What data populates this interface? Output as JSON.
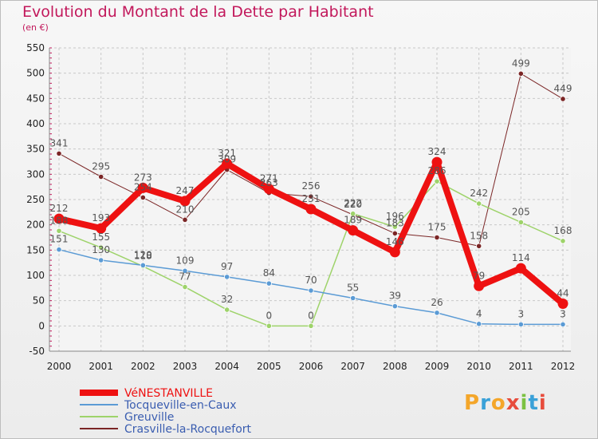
{
  "title": "Evolution du Montant de la Dette par Habitant",
  "subtitle": "(en €)",
  "logo": {
    "text": "Proxiti",
    "colors": [
      "#f4a62a",
      "#3aa1d8",
      "#f4a62a",
      "#e74c3c",
      "#7cc242",
      "#3aa1d8",
      "#e74c3c"
    ]
  },
  "chart_data": {
    "type": "line",
    "title": "Evolution du Montant de la Dette par Habitant",
    "subtitle": "(en €)",
    "xlabel": "",
    "ylabel": "",
    "x": [
      "2000",
      "2001",
      "2002",
      "2003",
      "2004",
      "2005",
      "2006",
      "2007",
      "2008",
      "2009",
      "2010",
      "2011",
      "2012"
    ],
    "ylim": [
      -50,
      550
    ],
    "yticks": [
      -50,
      0,
      50,
      100,
      150,
      200,
      250,
      300,
      350,
      400,
      450,
      500,
      550
    ],
    "grid": true,
    "legend_position": "bottom-left",
    "series": [
      {
        "name": "VéNESTANVILLE",
        "color": "#ee1111",
        "width": 8,
        "values": [
          212,
          193,
          273,
          247,
          321,
          271,
          231,
          189,
          146,
          324,
          79,
          114,
          44
        ],
        "labels": [
          "212",
          "193",
          "273",
          "247",
          "321",
          "271",
          "231",
          "189",
          "146",
          "324",
          "79",
          "114",
          "44"
        ]
      },
      {
        "name": "Tocqueville-en-Caux",
        "color": "#5b9bd5",
        "width": 1.5,
        "values": [
          151,
          130,
          120,
          109,
          97,
          84,
          70,
          55,
          39,
          26,
          4,
          3,
          3
        ],
        "labels": [
          "151",
          "130",
          "120",
          "109",
          "97",
          "84",
          "70",
          "55",
          "39",
          "26",
          "4",
          "3",
          "3"
        ]
      },
      {
        "name": "Greuville",
        "color": "#9ed36a",
        "width": 1.5,
        "values": [
          188,
          155,
          118,
          77,
          32,
          0,
          0,
          222,
          196,
          286,
          242,
          205,
          168
        ],
        "labels": [
          "188",
          "155",
          "118",
          "77",
          "32",
          "0",
          "0",
          "222",
          "196",
          "286",
          "242",
          "205",
          "168"
        ]
      },
      {
        "name": "Crasville-la-Rocquefort",
        "color": "#7b2626",
        "width": 1,
        "values": [
          341,
          295,
          254,
          210,
          309,
          263,
          256,
          220,
          183,
          175,
          158,
          499,
          449
        ],
        "labels": [
          "341",
          "295",
          "254",
          "210",
          "309",
          "263",
          "256",
          "220",
          "183",
          "175",
          "158",
          "499",
          "449"
        ]
      }
    ]
  }
}
